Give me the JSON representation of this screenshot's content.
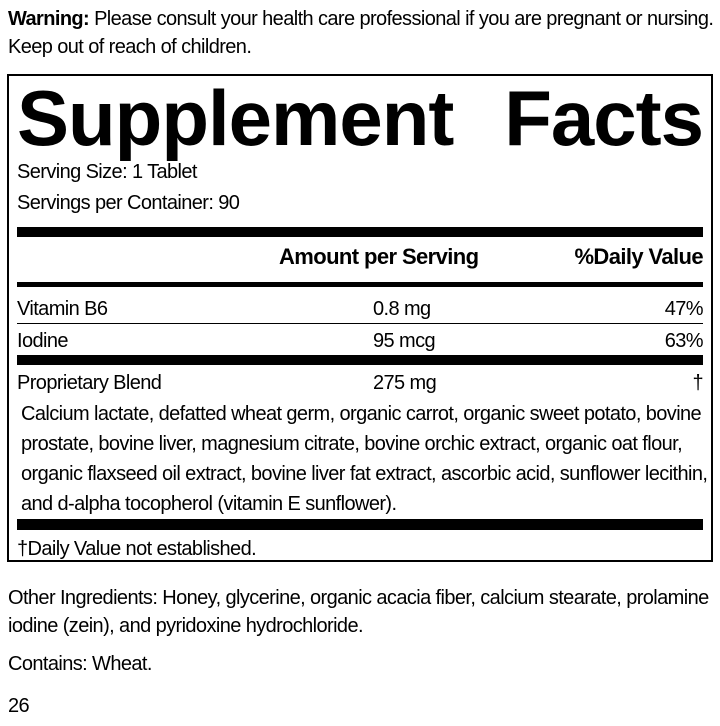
{
  "warning": {
    "label": "Warning:",
    "text": " Please consult your health care professional if you are pregnant or nursing. Keep out of reach of children."
  },
  "facts": {
    "title_word1": "Supplement",
    "title_word2": "Facts",
    "serving_size": "Serving Size: 1 Tablet",
    "servings_per_container": "Servings per Container: 90",
    "header": {
      "amount": "Amount per Serving",
      "dv": "%Daily Value"
    },
    "rows": [
      {
        "name": "Vitamin B6",
        "amount": "0.8 mg",
        "dv": "47%"
      },
      {
        "name": "Iodine",
        "amount": "95 mcg",
        "dv": "63%"
      },
      {
        "name": "Proprietary Blend",
        "amount": "275 mg",
        "dv": "†"
      }
    ],
    "blend_ingredients": "Calcium lactate, defatted wheat germ, organic carrot, organic sweet potato, bovine prostate, bovine liver, magnesium citrate, bovine orchic extract, organic oat flour, organic flaxseed oil extract, bovine liver fat extract, ascorbic acid, sunflower lecithin, and d-alpha tocopherol (vitamin E sunflower).",
    "footnote": "†Daily Value not established."
  },
  "other_ingredients": "Other Ingredients: Honey, glycerine, organic acacia fiber, calcium stearate, prolamine iodine (zein), and pyridoxine hydrochloride.",
  "contains": "Contains: Wheat.",
  "page_number": "26"
}
